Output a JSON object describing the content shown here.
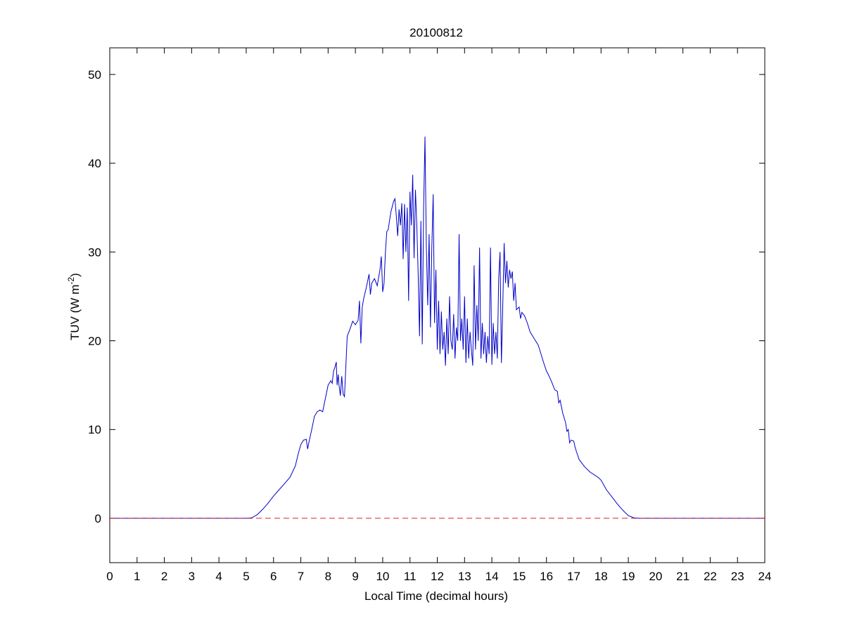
{
  "chart_data": {
    "type": "line",
    "title": "20100812",
    "xlabel": "Local Time (decimal hours)",
    "ylabel": {
      "base": "TUV (W m",
      "sup": "-2",
      "close": ")"
    },
    "xlim": [
      0,
      24
    ],
    "ylim": [
      -5,
      53
    ],
    "xticks": [
      0,
      1,
      2,
      3,
      4,
      5,
      6,
      7,
      8,
      9,
      10,
      11,
      12,
      13,
      14,
      15,
      16,
      17,
      18,
      19,
      20,
      21,
      22,
      23,
      24
    ],
    "yticks": [
      0,
      10,
      20,
      30,
      40,
      50
    ],
    "grid": false,
    "series": [
      {
        "color": "#0000c8",
        "style": "solid",
        "points": [
          [
            0,
            0
          ],
          [
            5.0,
            0
          ],
          [
            5.2,
            0.05
          ],
          [
            5.4,
            0.4
          ],
          [
            5.6,
            1.0
          ],
          [
            5.8,
            1.7
          ],
          [
            6.0,
            2.5
          ],
          [
            6.2,
            3.2
          ],
          [
            6.4,
            3.9
          ],
          [
            6.6,
            4.6
          ],
          [
            6.8,
            5.9
          ],
          [
            6.9,
            7.2
          ],
          [
            7.0,
            8.3
          ],
          [
            7.1,
            8.8
          ],
          [
            7.2,
            8.9
          ],
          [
            7.25,
            7.8
          ],
          [
            7.3,
            8.6
          ],
          [
            7.4,
            10.0
          ],
          [
            7.5,
            11.5
          ],
          [
            7.6,
            12.0
          ],
          [
            7.7,
            12.2
          ],
          [
            7.8,
            12.0
          ],
          [
            7.9,
            13.5
          ],
          [
            8.0,
            15.0
          ],
          [
            8.1,
            15.5
          ],
          [
            8.15,
            15.2
          ],
          [
            8.2,
            16.6
          ],
          [
            8.25,
            17.0
          ],
          [
            8.3,
            17.6
          ],
          [
            8.33,
            15.0
          ],
          [
            8.37,
            16.2
          ],
          [
            8.4,
            15.0
          ],
          [
            8.45,
            13.8
          ],
          [
            8.5,
            16.0
          ],
          [
            8.55,
            14.0
          ],
          [
            8.6,
            13.7
          ],
          [
            8.7,
            20.5
          ],
          [
            8.8,
            21.3
          ],
          [
            8.9,
            22.2
          ],
          [
            9.0,
            21.8
          ],
          [
            9.1,
            22.3
          ],
          [
            9.15,
            24.5
          ],
          [
            9.2,
            19.7
          ],
          [
            9.25,
            23.8
          ],
          [
            9.3,
            24.7
          ],
          [
            9.4,
            26.0
          ],
          [
            9.5,
            27.5
          ],
          [
            9.55,
            25.2
          ],
          [
            9.6,
            26.5
          ],
          [
            9.7,
            27.0
          ],
          [
            9.8,
            26.2
          ],
          [
            9.9,
            28.0
          ],
          [
            9.95,
            29.5
          ],
          [
            10.0,
            25.5
          ],
          [
            10.05,
            26.5
          ],
          [
            10.1,
            30.0
          ],
          [
            10.15,
            32.3
          ],
          [
            10.2,
            32.5
          ],
          [
            10.3,
            34.5
          ],
          [
            10.4,
            35.7
          ],
          [
            10.45,
            36.0
          ],
          [
            10.5,
            34.0
          ],
          [
            10.55,
            31.8
          ],
          [
            10.6,
            34.8
          ],
          [
            10.65,
            33.0
          ],
          [
            10.7,
            35.5
          ],
          [
            10.75,
            29.2
          ],
          [
            10.8,
            35.4
          ],
          [
            10.85,
            30.0
          ],
          [
            10.9,
            35.0
          ],
          [
            10.95,
            24.5
          ],
          [
            11.0,
            36.8
          ],
          [
            11.05,
            33.0
          ],
          [
            11.1,
            38.7
          ],
          [
            11.15,
            29.3
          ],
          [
            11.2,
            37.0
          ],
          [
            11.25,
            33.0
          ],
          [
            11.3,
            27.5
          ],
          [
            11.35,
            20.5
          ],
          [
            11.4,
            33.5
          ],
          [
            11.45,
            19.6
          ],
          [
            11.5,
            35.0
          ],
          [
            11.55,
            43.0
          ],
          [
            11.6,
            30.5
          ],
          [
            11.65,
            24.0
          ],
          [
            11.7,
            32.0
          ],
          [
            11.75,
            21.5
          ],
          [
            11.8,
            30.5
          ],
          [
            11.85,
            36.5
          ],
          [
            11.9,
            22.0
          ],
          [
            11.95,
            28.0
          ],
          [
            12.0,
            19.0
          ],
          [
            12.05,
            24.5
          ],
          [
            12.1,
            18.5
          ],
          [
            12.15,
            23.3
          ],
          [
            12.2,
            19.0
          ],
          [
            12.25,
            21.0
          ],
          [
            12.3,
            17.2
          ],
          [
            12.35,
            22.5
          ],
          [
            12.4,
            18.5
          ],
          [
            12.45,
            25.0
          ],
          [
            12.5,
            20.0
          ],
          [
            12.55,
            19.0
          ],
          [
            12.6,
            23.0
          ],
          [
            12.65,
            18.0
          ],
          [
            12.7,
            21.5
          ],
          [
            12.75,
            20.0
          ],
          [
            12.8,
            32.0
          ],
          [
            12.85,
            20.0
          ],
          [
            12.9,
            22.5
          ],
          [
            12.95,
            19.0
          ],
          [
            13.0,
            25.0
          ],
          [
            13.05,
            17.5
          ],
          [
            13.1,
            22.5
          ],
          [
            13.15,
            18.0
          ],
          [
            13.2,
            21.0
          ],
          [
            13.25,
            19.0
          ],
          [
            13.3,
            17.2
          ],
          [
            13.35,
            28.5
          ],
          [
            13.4,
            19.0
          ],
          [
            13.45,
            24.0
          ],
          [
            13.5,
            20.0
          ],
          [
            13.55,
            30.5
          ],
          [
            13.6,
            18.0
          ],
          [
            13.65,
            22.0
          ],
          [
            13.7,
            18.5
          ],
          [
            13.75,
            21.0
          ],
          [
            13.8,
            17.5
          ],
          [
            13.85,
            20.5
          ],
          [
            13.9,
            18.5
          ],
          [
            13.95,
            30.5
          ],
          [
            14.0,
            17.3
          ],
          [
            14.05,
            22.0
          ],
          [
            14.1,
            18.5
          ],
          [
            14.15,
            21.0
          ],
          [
            14.2,
            18.0
          ],
          [
            14.25,
            27.0
          ],
          [
            14.3,
            30.0
          ],
          [
            14.35,
            17.5
          ],
          [
            14.4,
            24.0
          ],
          [
            14.45,
            31.0
          ],
          [
            14.5,
            26.5
          ],
          [
            14.55,
            29.0
          ],
          [
            14.6,
            26.0
          ],
          [
            14.65,
            28.0
          ],
          [
            14.7,
            27.0
          ],
          [
            14.75,
            27.8
          ],
          [
            14.8,
            24.5
          ],
          [
            14.85,
            26.5
          ],
          [
            14.9,
            23.5
          ],
          [
            15.0,
            23.8
          ],
          [
            15.05,
            22.5
          ],
          [
            15.1,
            23.2
          ],
          [
            15.2,
            22.8
          ],
          [
            15.3,
            22.0
          ],
          [
            15.4,
            21.0
          ],
          [
            15.5,
            20.5
          ],
          [
            15.6,
            20.0
          ],
          [
            15.7,
            19.5
          ],
          [
            15.8,
            18.5
          ],
          [
            15.9,
            17.5
          ],
          [
            16.0,
            16.6
          ],
          [
            16.1,
            16.0
          ],
          [
            16.2,
            15.3
          ],
          [
            16.3,
            14.5
          ],
          [
            16.4,
            14.3
          ],
          [
            16.45,
            13.0
          ],
          [
            16.5,
            13.3
          ],
          [
            16.6,
            11.8
          ],
          [
            16.7,
            10.8
          ],
          [
            16.75,
            9.8
          ],
          [
            16.8,
            10.0
          ],
          [
            16.85,
            8.5
          ],
          [
            16.9,
            8.8
          ],
          [
            17.0,
            8.7
          ],
          [
            17.05,
            8.0
          ],
          [
            17.1,
            7.5
          ],
          [
            17.2,
            6.6
          ],
          [
            17.4,
            5.8
          ],
          [
            17.6,
            5.2
          ],
          [
            17.8,
            4.8
          ],
          [
            17.9,
            4.6
          ],
          [
            18.0,
            4.3
          ],
          [
            18.2,
            3.2
          ],
          [
            18.4,
            2.4
          ],
          [
            18.6,
            1.6
          ],
          [
            18.8,
            0.9
          ],
          [
            19.0,
            0.3
          ],
          [
            19.2,
            0.05
          ],
          [
            19.4,
            0
          ],
          [
            24,
            0
          ]
        ]
      },
      {
        "color": "#e02020",
        "style": "dashed",
        "points": [
          [
            0,
            0
          ],
          [
            24,
            0
          ]
        ]
      }
    ]
  }
}
